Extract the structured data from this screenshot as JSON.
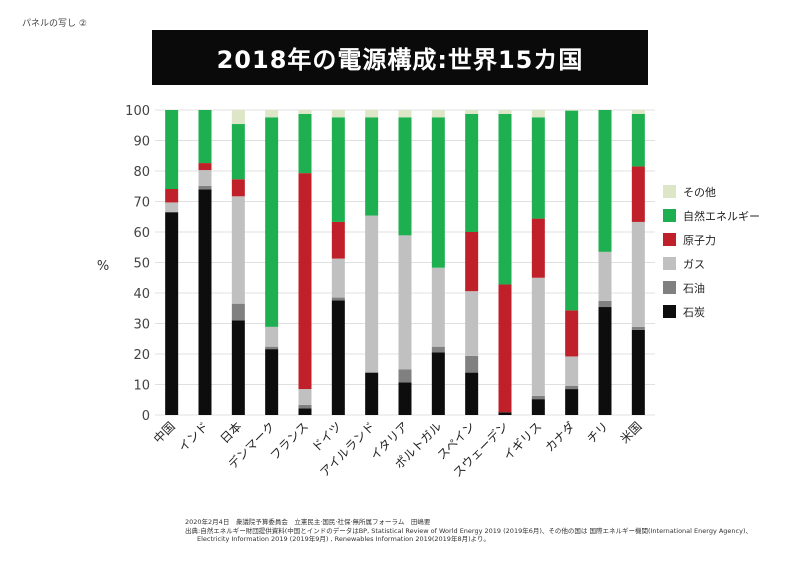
{
  "panel_label": "パネルの写し ②",
  "chart_data": {
    "type": "bar",
    "stacked": true,
    "title": "2018年の電源構成:世界15カ国",
    "ylabel": "%",
    "ylim": [
      0,
      100
    ],
    "yticks": [
      0,
      10,
      20,
      30,
      40,
      50,
      60,
      70,
      80,
      90,
      100
    ],
    "grid": true,
    "legend_position": "right",
    "categories": [
      "中国",
      "インド",
      "日本",
      "デンマーク",
      "フランス",
      "ドイツ",
      "アイルランド",
      "イタリア",
      "ポルトガル",
      "スペイン",
      "スウェーデン",
      "イギリス",
      "カナダ",
      "チリ",
      "米国"
    ],
    "series": [
      {
        "name": "石炭",
        "color": "#0d0d0d",
        "values": [
          66.5,
          74.0,
          31.0,
          21.6,
          2.2,
          37.6,
          13.9,
          10.7,
          20.5,
          13.9,
          0.9,
          5.2,
          8.5,
          35.4,
          27.9
        ]
      },
      {
        "name": "石油",
        "color": "#808080",
        "values": [
          0,
          1.1,
          5.5,
          0.8,
          1.1,
          0.9,
          0,
          4.3,
          1.9,
          5.5,
          0,
          1.1,
          1.1,
          2.0,
          1.0
        ]
      },
      {
        "name": "ガス",
        "color": "#c0c0c0",
        "values": [
          3.2,
          5.2,
          35.2,
          6.5,
          5.2,
          12.8,
          51.5,
          43.9,
          25.9,
          21.2,
          0,
          38.7,
          9.6,
          16.1,
          34.4
        ]
      },
      {
        "name": "原子力",
        "color": "#c0202a",
        "values": [
          4.4,
          2.3,
          5.6,
          0,
          70.8,
          12.0,
          0,
          0,
          0,
          19.4,
          41.9,
          19.4,
          15.1,
          0,
          18.2
        ]
      },
      {
        "name": "自然エネルギー",
        "color": "#1eb050",
        "values": [
          25.9,
          17.4,
          18.1,
          68.7,
          19.4,
          34.3,
          32.2,
          38.7,
          49.3,
          38.7,
          55.9,
          33.2,
          65.5,
          46.5,
          17.2
        ]
      },
      {
        "name": "その他",
        "color": "#dde6c6",
        "values": [
          0,
          0,
          4.6,
          2.4,
          1.3,
          2.4,
          2.4,
          2.4,
          2.4,
          1.3,
          1.3,
          2.4,
          0.2,
          0,
          1.3
        ]
      }
    ],
    "legend_order": [
      "その他",
      "自然エネルギー",
      "原子力",
      "ガス",
      "石油",
      "石炭"
    ]
  },
  "footnote": {
    "line1": "2020年2月4日　衆議院予算委員会　立憲民主·国民·社保·無所属フォーラム　田嶋要",
    "line2": "出典:自然エネルギー財団提供資料(中国とインドのデータはBP, Statistical Review of World Energy 2019 (2019年6月)、その他の国は 国際エネルギー機関(International Energy Agency)、",
    "line3": "Electricity Information 2019 (2019年9月) , Renewables Information 2019(2019年8月)より。"
  }
}
